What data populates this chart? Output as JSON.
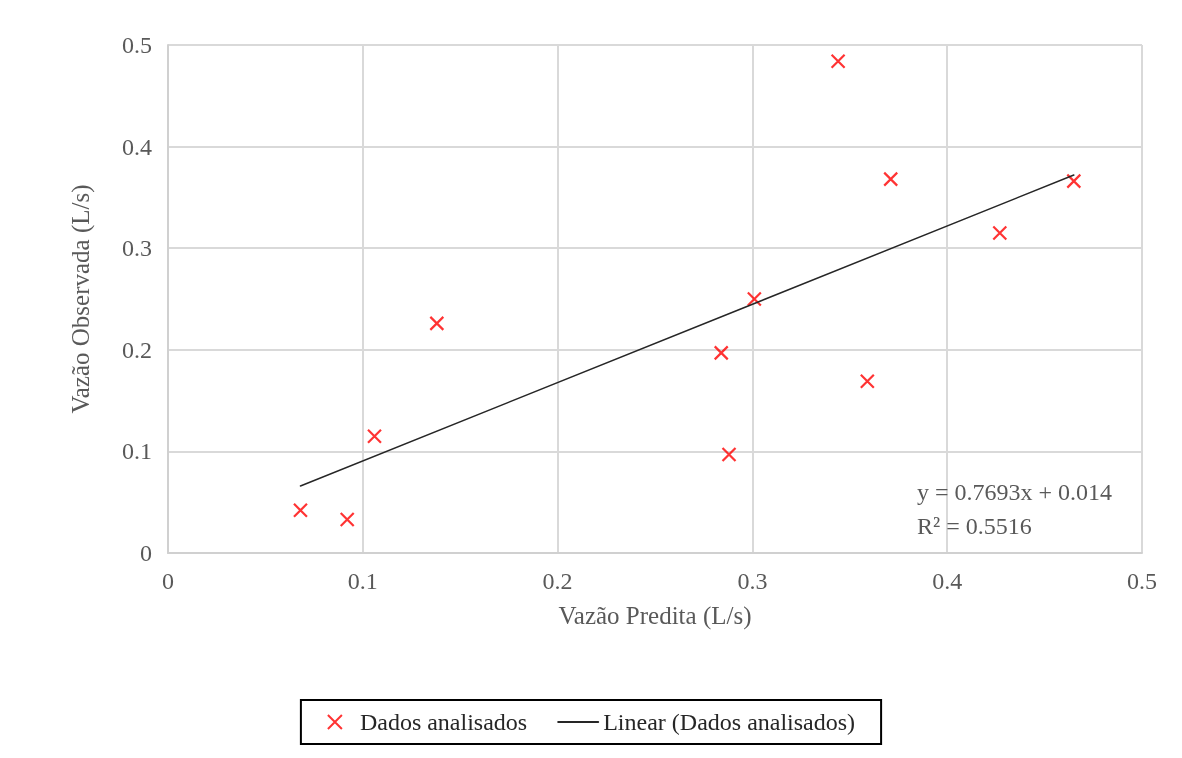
{
  "chart_data": {
    "type": "scatter",
    "xlabel": "Vazão Predita (L/s)",
    "ylabel": "Vazão Observada (L/s)",
    "xlim": [
      0,
      0.5
    ],
    "xticks": [
      0,
      0.1,
      0.2,
      0.3,
      0.4,
      0.5
    ],
    "ylim": [
      0,
      0.5
    ],
    "yticks": [
      0,
      0.1,
      0.2,
      0.3,
      0.4,
      0.5
    ],
    "grid": true,
    "legend": "bottom",
    "annotations": [
      "y = 0.7693x + 0.014",
      "R² = 0.5516"
    ],
    "series": [
      {
        "name": "Dados analisados",
        "marker": "cross",
        "color": "#ff0000",
        "x": [
          0.068,
          0.092,
          0.106,
          0.138,
          0.344,
          0.371,
          0.465,
          0.427,
          0.301,
          0.284,
          0.359,
          0.288
        ],
        "values": [
          0.042,
          0.033,
          0.115,
          0.226,
          0.484,
          0.368,
          0.366,
          0.315,
          0.25,
          0.197,
          0.169,
          0.097
        ]
      },
      {
        "name": "Linear (Dados analisados)",
        "type": "line",
        "marker": "none",
        "color": "#262626",
        "x": [
          0.068,
          0.465
        ],
        "values": [
          0.066,
          0.372
        ]
      }
    ]
  }
}
